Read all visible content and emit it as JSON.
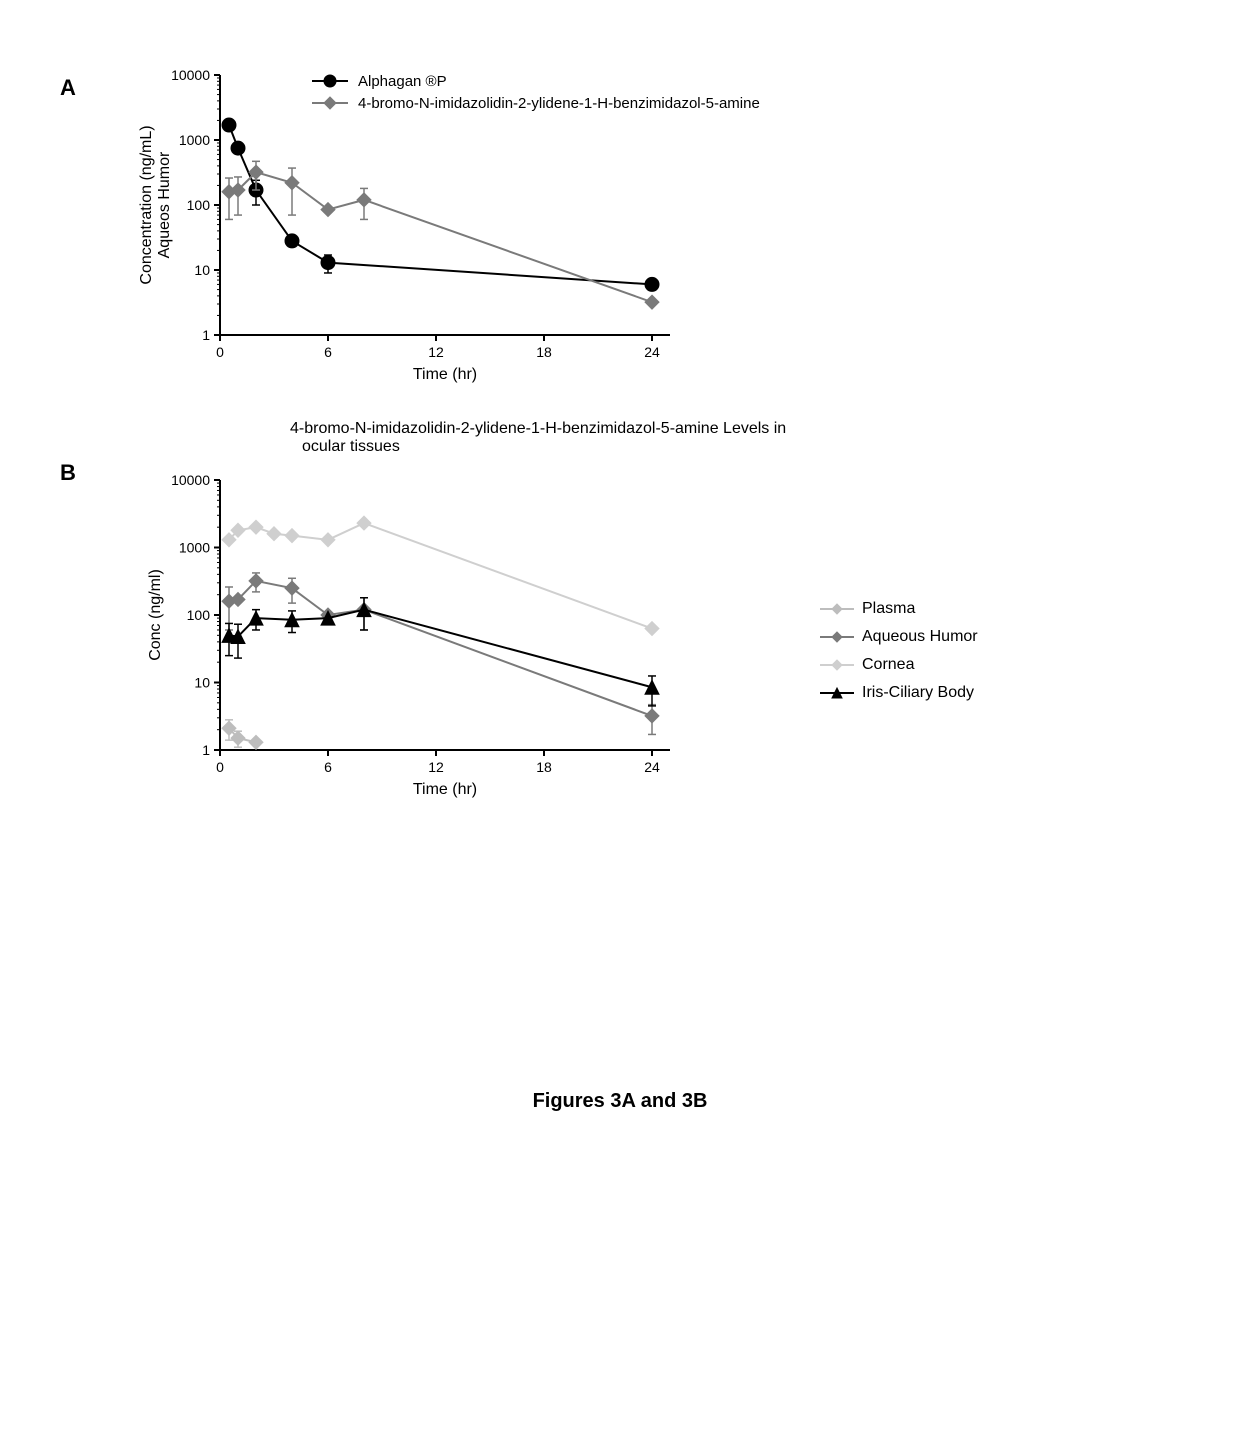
{
  "caption": "Figures 3A and 3B",
  "panelA": {
    "label": "A",
    "x_label": "Time (hr)",
    "y_label": "Aqueos Humor\nConcentration (ng/mL)",
    "xlim": [
      0,
      25
    ],
    "xticks": [
      0,
      6,
      12,
      18,
      24
    ],
    "ylim_log": [
      1,
      10000
    ],
    "yticks_log": [
      1,
      10,
      100,
      1000,
      10000
    ],
    "legend": [
      {
        "name": "Alphagan ®P",
        "marker": "circle",
        "color": "#000000"
      },
      {
        "name": "4-bromo-N-imidazolidin-2-ylidene-1-H-benzimidazol-5-amine",
        "marker": "diamond",
        "color": "#7a7a7a"
      }
    ],
    "series": {
      "alphagan": {
        "x": [
          0.5,
          1,
          2,
          4,
          6,
          24
        ],
        "y": [
          1700,
          750,
          170,
          28,
          13,
          6
        ],
        "err": [
          0,
          0,
          70,
          0,
          4,
          0
        ],
        "color": "#000000",
        "marker": "circle"
      },
      "compound": {
        "x": [
          0.5,
          1,
          2,
          4,
          6,
          8,
          24
        ],
        "y": [
          160,
          170,
          320,
          220,
          85,
          120,
          3.2
        ],
        "err": [
          100,
          100,
          150,
          150,
          0,
          60,
          0
        ],
        "color": "#7a7a7a",
        "marker": "diamond"
      }
    },
    "style": {
      "axis_color": "#000000",
      "tick_fontsize": 14,
      "label_fontsize": 16,
      "line_width": 2,
      "marker_size": 7
    }
  },
  "panelB": {
    "label": "B",
    "title": "4-bromo-N-imidazolidin-2-ylidene-1-H-benzimidazol-5-amine Levels in\nocular tissues",
    "x_label": "Time (hr)",
    "y_label": "Conc (ng/ml)",
    "xlim": [
      0,
      25
    ],
    "xticks": [
      0,
      6,
      12,
      18,
      24
    ],
    "ylim_log": [
      1,
      10000
    ],
    "yticks_log": [
      1,
      10,
      100,
      1000,
      10000
    ],
    "legend": [
      {
        "name": "Plasma",
        "marker": "diamond",
        "color": "#bdbdbd"
      },
      {
        "name": "Aqueous Humor",
        "marker": "diamond",
        "color": "#7a7a7a"
      },
      {
        "name": "Cornea",
        "marker": "diamond",
        "color": "#cfcfcf"
      },
      {
        "name": "Iris-Ciliary Body",
        "marker": "triangle",
        "color": "#000000"
      }
    ],
    "series": {
      "plasma": {
        "x": [
          0.5,
          1,
          2
        ],
        "y": [
          2.1,
          1.5,
          1.3
        ],
        "err": [
          0.7,
          0.4,
          0
        ],
        "color": "#bdbdbd",
        "marker": "diamond"
      },
      "aqueous": {
        "x": [
          0.5,
          1,
          2,
          4,
          6,
          8,
          24
        ],
        "y": [
          160,
          170,
          320,
          250,
          100,
          120,
          3.2
        ],
        "err": [
          100,
          0,
          100,
          100,
          0,
          60,
          1.5
        ],
        "color": "#7a7a7a",
        "marker": "diamond"
      },
      "cornea": {
        "x": [
          0.5,
          1,
          2,
          3,
          4,
          6,
          8,
          24
        ],
        "y": [
          1300,
          1800,
          2000,
          1600,
          1500,
          1300,
          2300,
          63
        ],
        "err": [
          0,
          0,
          0,
          0,
          0,
          0,
          0,
          0
        ],
        "color": "#cfcfcf",
        "marker": "diamond"
      },
      "iris": {
        "x": [
          0.5,
          1,
          2,
          4,
          6,
          8,
          24
        ],
        "y": [
          50,
          48,
          90,
          85,
          90,
          120,
          8.5
        ],
        "err": [
          25,
          25,
          30,
          30,
          0,
          60,
          4
        ],
        "color": "#000000",
        "marker": "triangle"
      }
    },
    "style": {
      "axis_color": "#000000",
      "tick_fontsize": 14,
      "label_fontsize": 16,
      "line_width": 2,
      "marker_size": 7
    }
  }
}
